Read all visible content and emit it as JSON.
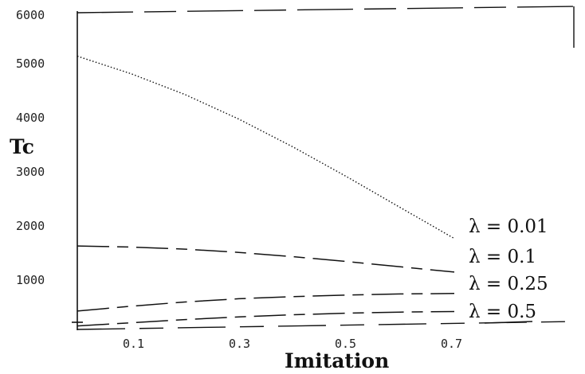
{
  "chart_data": {
    "type": "line",
    "title": "",
    "xlabel": "Imitation",
    "ylabel": "Tc",
    "xlim": [
      0,
      0.7
    ],
    "ylim": [
      0,
      6000
    ],
    "x_ticks": [
      "0.1",
      "0.3",
      "0.5",
      "0.7"
    ],
    "y_ticks": [
      "1000",
      "2000",
      "3000",
      "4000",
      "5000",
      "6000"
    ],
    "series": [
      {
        "name": "λ = 0.01",
        "style": "dotted",
        "x": [
          0,
          0.1,
          0.2,
          0.3,
          0.4,
          0.5,
          0.6,
          0.7
        ],
        "y": [
          5200,
          4870,
          4480,
          4020,
          3500,
          2940,
          2360,
          1780
        ]
      },
      {
        "name": "λ = 0.1",
        "style": "dash-long-short",
        "x": [
          0,
          0.1,
          0.2,
          0.3,
          0.4,
          0.5,
          0.6,
          0.7
        ],
        "y": [
          1640,
          1620,
          1580,
          1520,
          1440,
          1350,
          1250,
          1150
        ]
      },
      {
        "name": "λ = 0.25",
        "style": "dash-long-short",
        "x": [
          0,
          0.1,
          0.2,
          0.3,
          0.4,
          0.5,
          0.6,
          0.7
        ],
        "y": [
          420,
          510,
          590,
          650,
          690,
          720,
          740,
          750
        ]
      },
      {
        "name": "λ = 0.5",
        "style": "dash-long-short",
        "x": [
          0,
          0.1,
          0.2,
          0.3,
          0.4,
          0.5,
          0.6,
          0.7
        ],
        "y": [
          140,
          200,
          260,
          310,
          350,
          380,
          400,
          410
        ]
      }
    ]
  }
}
